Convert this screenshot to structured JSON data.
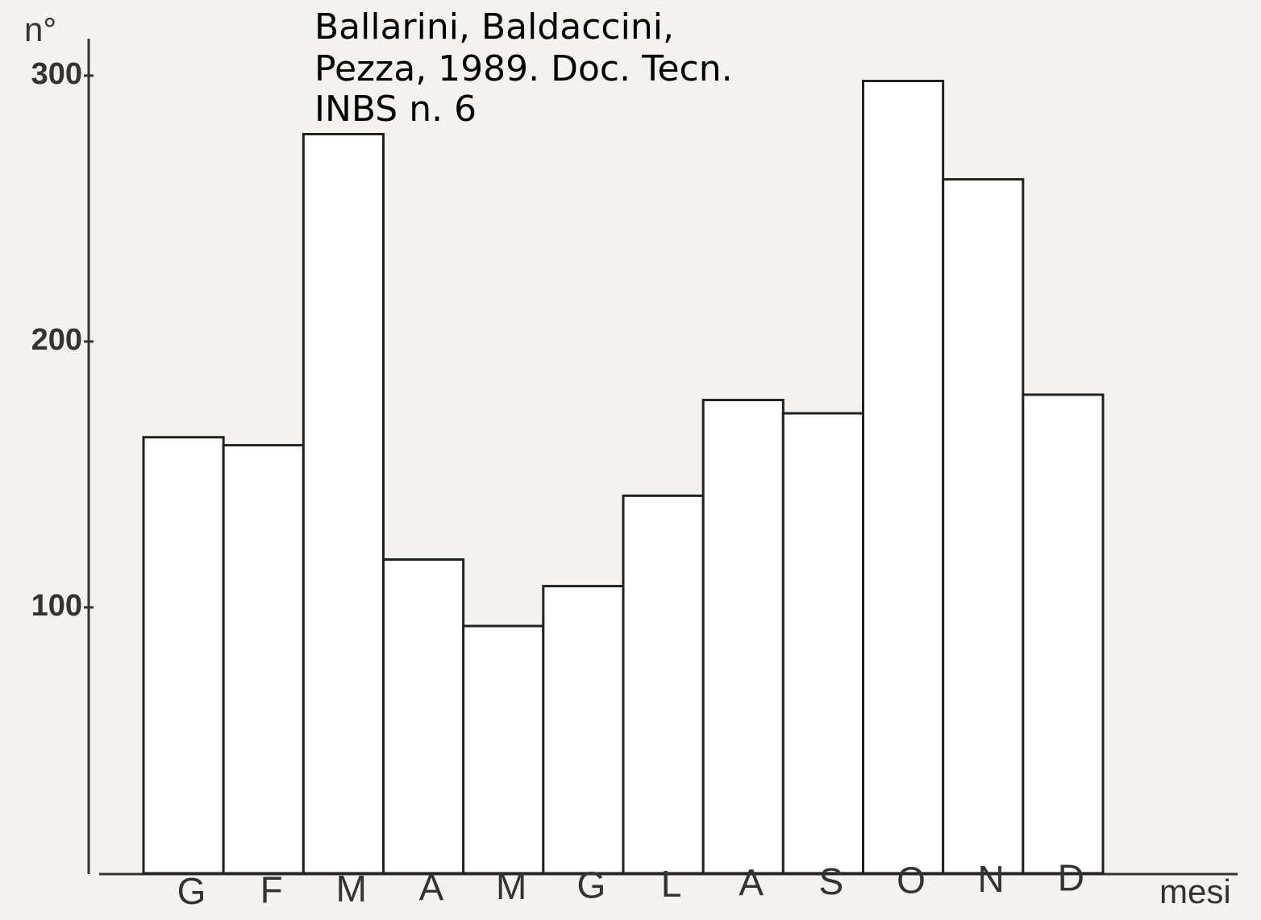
{
  "chart_data": {
    "type": "bar",
    "annotation": [
      "Ballarini, Baldaccini,",
      "Pezza, 1989. Doc. Tecn.",
      "INBS n. 6"
    ],
    "y_label": "n°",
    "x_label": "mesi",
    "categories": [
      "G",
      "F",
      "M",
      "A",
      "M",
      "G",
      "L",
      "A",
      "S",
      "O",
      "N",
      "D"
    ],
    "values": [
      164,
      161,
      278,
      118,
      93,
      108,
      142,
      178,
      173,
      298,
      261,
      180
    ],
    "color": "#ffffff",
    "ylim": [
      0,
      313
    ],
    "yticks": [
      100,
      200,
      300
    ],
    "grid": false
  }
}
